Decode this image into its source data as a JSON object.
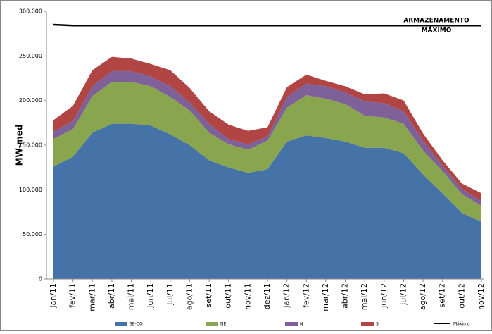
{
  "chart_data": {
    "type": "stacked-area",
    "y_label": "MW-med",
    "annotation": [
      "ARMAZENAMENTO",
      "MÁXIMO"
    ],
    "categories": [
      "jan/11",
      "fev/11",
      "mar/11",
      "abr/11",
      "mai/11",
      "jun/11",
      "jul/11",
      "ago/11",
      "set/11",
      "out/11",
      "nov/11",
      "dez/11",
      "jan/12",
      "fev/12",
      "mar/12",
      "abr/12",
      "mai/12",
      "jun/12",
      "jul/12",
      "ago/12",
      "set/12",
      "out/12",
      "nov/12"
    ],
    "series": [
      {
        "name": "SE-CO",
        "color": "#4572a7",
        "values": [
          126000,
          137000,
          164000,
          174000,
          174000,
          172000,
          162000,
          150000,
          133000,
          125000,
          119000,
          123000,
          154000,
          161000,
          158000,
          154000,
          147000,
          147000,
          141000,
          117000,
          96000,
          74000,
          64000
        ]
      },
      {
        "name": "NE",
        "color": "#89a54e",
        "values": [
          31000,
          31000,
          41000,
          47000,
          47000,
          44000,
          42000,
          39000,
          31000,
          26000,
          26000,
          32000,
          38000,
          45000,
          44000,
          42000,
          36000,
          34000,
          33000,
          27000,
          25000,
          21000,
          18000
        ]
      },
      {
        "name": "N",
        "color": "#7e6199",
        "values": [
          8000,
          9000,
          11000,
          12000,
          12000,
          11000,
          12000,
          9000,
          10000,
          6000,
          6000,
          5000,
          12000,
          13000,
          14000,
          13000,
          16000,
          16000,
          14000,
          11000,
          6000,
          6000,
          5000
        ]
      },
      {
        "name": "S",
        "color": "#b04543",
        "values": [
          13000,
          17000,
          18000,
          16000,
          14000,
          14000,
          18000,
          16000,
          14000,
          16000,
          15000,
          10000,
          11000,
          10000,
          6000,
          7000,
          8000,
          11000,
          12000,
          8000,
          6000,
          6000,
          9000
        ]
      },
      {
        "name": "Máximo",
        "type": "line",
        "color": "#000000",
        "values": [
          285000,
          284000,
          284000,
          284000,
          284000,
          284000,
          284000,
          284000,
          284000,
          284000,
          284000,
          284000,
          284000,
          284000,
          284000,
          284000,
          284000,
          284000,
          284000,
          284000,
          284000,
          284000,
          284000
        ]
      }
    ],
    "ylim": [
      0,
      300000
    ],
    "yticks": [
      0,
      {
        "value": 50000,
        "label": "50.000"
      },
      {
        "value": 100000,
        "label": "100.000"
      },
      {
        "value": 150000,
        "label": "150.000"
      },
      {
        "value": 200000,
        "label": "200.000"
      },
      {
        "value": 250000,
        "label": "250.000"
      },
      {
        "value": 300000,
        "label": "300.000"
      }
    ]
  }
}
